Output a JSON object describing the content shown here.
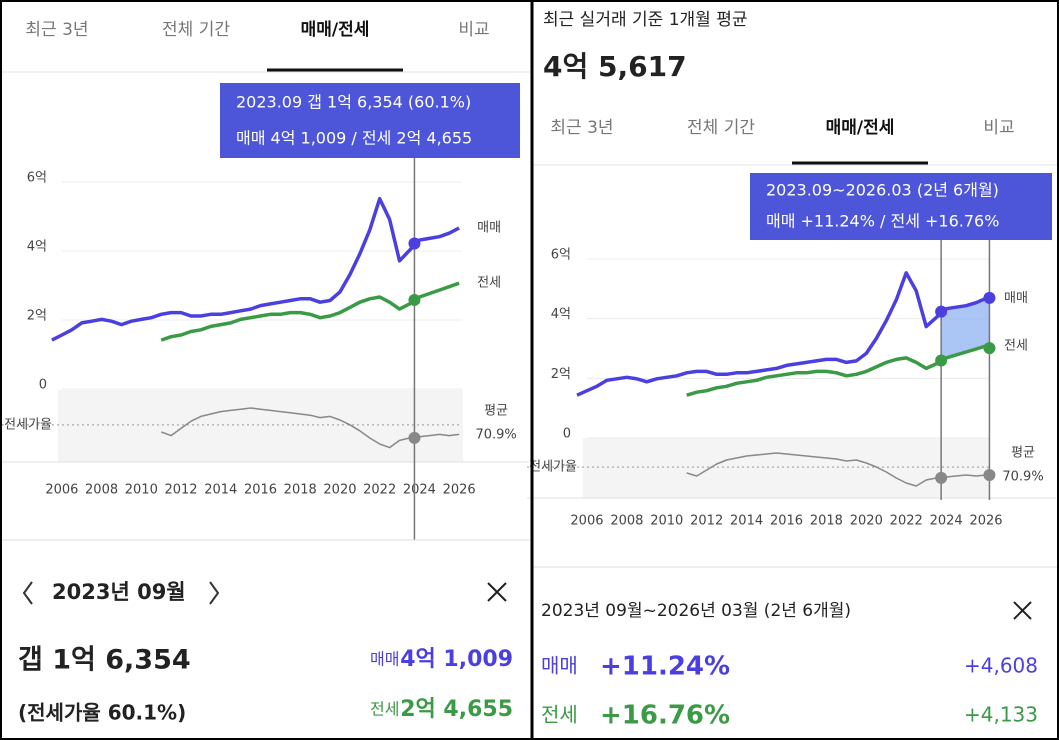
{
  "left": {
    "tabs": [
      "최근 3년",
      "전체 기간",
      "매매/전세",
      "비교"
    ],
    "tooltip": {
      "line1": "2023.09  갭 1억 6,354 (60.1%)",
      "line2": "매매 4억 1,009 / 전세 2억 4,655"
    },
    "detail": {
      "month": "2023년 09월",
      "gap": "갭 1억 6,354",
      "ratio": "(전세가율 60.1%)",
      "sale_label": "매매",
      "sale": "4억 1,009",
      "jeonse_label": "전세",
      "jeonse": "2억 4,655"
    }
  },
  "right": {
    "caption": "최근 실거래 기준 1개월 평균",
    "price": "4억 5,617",
    "tabs": [
      "최근 3년",
      "전체 기간",
      "매매/전세",
      "비교"
    ],
    "tooltip": {
      "line1": "2023.09~2026.03 (2년 6개월)",
      "line2": "매매 +11.24%  /  전세 +16.76%"
    },
    "detail": {
      "period": "2023년 09월~2026년 03월 (2년 6개월)",
      "rows": [
        {
          "label": "매매",
          "change": "+11.24%",
          "diff": "+4,608"
        },
        {
          "label": "전세",
          "change": "+16.76%",
          "diff": "+4,133"
        }
      ]
    }
  },
  "chart_data": [
    {
      "type": "line",
      "x": [
        2005.5,
        2006,
        2006.5,
        2007,
        2007.5,
        2008,
        2008.5,
        2009,
        2009.5,
        2010,
        2010.5,
        2011,
        2011.5,
        2012,
        2012.5,
        2013,
        2013.5,
        2014,
        2014.5,
        2015,
        2015.5,
        2016,
        2016.5,
        2017,
        2017.5,
        2018,
        2018.5,
        2019,
        2019.5,
        2020,
        2020.5,
        2021,
        2021.5,
        2022,
        2022.5,
        2023,
        2023.5,
        2024,
        2024.5,
        2025,
        2025.5,
        2026
      ],
      "series": [
        {
          "name": "매매",
          "color": "#4b3fe0",
          "values": [
            1.3,
            1.45,
            1.6,
            1.8,
            1.85,
            1.9,
            1.85,
            1.75,
            1.85,
            1.9,
            1.95,
            2.05,
            2.1,
            2.1,
            2.0,
            2.0,
            2.05,
            2.05,
            2.1,
            2.15,
            2.2,
            2.3,
            2.35,
            2.4,
            2.45,
            2.5,
            2.5,
            2.4,
            2.45,
            2.7,
            3.2,
            3.8,
            4.5,
            5.4,
            4.8,
            3.6,
            3.9,
            4.2,
            4.25,
            4.3,
            4.4,
            4.55
          ]
        },
        {
          "name": "전세",
          "color": "#3a9a45",
          "values": [
            null,
            null,
            null,
            null,
            null,
            null,
            null,
            null,
            null,
            null,
            null,
            1.3,
            1.4,
            1.45,
            1.55,
            1.6,
            1.7,
            1.75,
            1.8,
            1.9,
            1.95,
            2.0,
            2.05,
            2.05,
            2.1,
            2.1,
            2.05,
            1.95,
            2.0,
            2.1,
            2.25,
            2.4,
            2.5,
            2.55,
            2.4,
            2.2,
            2.35,
            2.55,
            2.65,
            2.75,
            2.85,
            2.95
          ]
        },
        {
          "name": "전세가율",
          "color": "#888888",
          "axis": "y2",
          "values": [
            null,
            null,
            null,
            null,
            null,
            null,
            null,
            null,
            null,
            null,
            null,
            65,
            62,
            68,
            74,
            78,
            80,
            82,
            83,
            84,
            85,
            84,
            83,
            82,
            81,
            80,
            79,
            77,
            78,
            75,
            71,
            66,
            60,
            55,
            52,
            58,
            60,
            61,
            62,
            63,
            62,
            63
          ]
        }
      ],
      "xlim": [
        2005,
        2027
      ],
      "xticks": [
        2006,
        2008,
        2010,
        2012,
        2014,
        2016,
        2018,
        2020,
        2022,
        2024,
        2026
      ],
      "ylim": [
        0,
        6
      ],
      "yticks": [
        0,
        {
          "value": 2,
          "label": "2억"
        },
        {
          "value": 4,
          "label": "4억"
        },
        {
          "value": 6,
          "label": "6억"
        }
      ],
      "y2lim": [
        40,
        100
      ],
      "average_name": "평균",
      "average": {
        "value": 70.9,
        "label": "70.9%"
      },
      "markers": [
        {
          "x": 2023.75,
          "values": [
            4.1009,
            2.4655,
            60.1
          ]
        }
      ]
    },
    {
      "type": "line",
      "x": [
        2005.5,
        2006,
        2006.5,
        2007,
        2007.5,
        2008,
        2008.5,
        2009,
        2009.5,
        2010,
        2010.5,
        2011,
        2011.5,
        2012,
        2012.5,
        2013,
        2013.5,
        2014,
        2014.5,
        2015,
        2015.5,
        2016,
        2016.5,
        2017,
        2017.5,
        2018,
        2018.5,
        2019,
        2019.5,
        2020,
        2020.5,
        2021,
        2021.5,
        2022,
        2022.5,
        2023,
        2023.5,
        2024,
        2024.5,
        2025,
        2025.5,
        2026
      ],
      "series": [
        {
          "name": "매매",
          "color": "#4b3fe0",
          "values": [
            1.3,
            1.45,
            1.6,
            1.8,
            1.85,
            1.9,
            1.85,
            1.75,
            1.85,
            1.9,
            1.95,
            2.05,
            2.1,
            2.1,
            2.0,
            2.0,
            2.05,
            2.05,
            2.1,
            2.15,
            2.2,
            2.3,
            2.35,
            2.4,
            2.45,
            2.5,
            2.5,
            2.4,
            2.45,
            2.7,
            3.2,
            3.8,
            4.5,
            5.4,
            4.8,
            3.6,
            3.9,
            4.2,
            4.25,
            4.3,
            4.4,
            4.55
          ]
        },
        {
          "name": "전세",
          "color": "#3a9a45",
          "values": [
            null,
            null,
            null,
            null,
            null,
            null,
            null,
            null,
            null,
            null,
            null,
            1.3,
            1.4,
            1.45,
            1.55,
            1.6,
            1.7,
            1.75,
            1.8,
            1.9,
            1.95,
            2.0,
            2.05,
            2.05,
            2.1,
            2.1,
            2.05,
            1.95,
            2.0,
            2.1,
            2.25,
            2.4,
            2.5,
            2.55,
            2.4,
            2.2,
            2.35,
            2.55,
            2.65,
            2.75,
            2.85,
            2.95
          ]
        },
        {
          "name": "전세가율",
          "color": "#888888",
          "axis": "y2",
          "values": [
            null,
            null,
            null,
            null,
            null,
            null,
            null,
            null,
            null,
            null,
            null,
            65,
            62,
            68,
            74,
            78,
            80,
            82,
            83,
            84,
            85,
            84,
            83,
            82,
            81,
            80,
            79,
            77,
            78,
            75,
            71,
            66,
            60,
            55,
            52,
            58,
            60,
            61,
            62,
            63,
            62,
            63
          ]
        }
      ],
      "xlim": [
        2005,
        2027
      ],
      "xticks": [
        2006,
        2008,
        2010,
        2012,
        2014,
        2016,
        2018,
        2020,
        2022,
        2024,
        2026
      ],
      "ylim": [
        0,
        6
      ],
      "yticks": [
        0,
        {
          "value": 2,
          "label": "2억"
        },
        {
          "value": 4,
          "label": "4억"
        },
        {
          "value": 6,
          "label": "6억"
        }
      ],
      "y2lim": [
        40,
        100
      ],
      "average_name": "평균",
      "average": {
        "value": 70.9,
        "label": "70.9%"
      },
      "markers": [
        {
          "x": 2023.75,
          "values": [
            4.1009,
            2.4655,
            60.1
          ]
        },
        {
          "x": 2026.17,
          "values": [
            4.5617,
            2.8788,
            63
          ]
        }
      ]
    }
  ]
}
